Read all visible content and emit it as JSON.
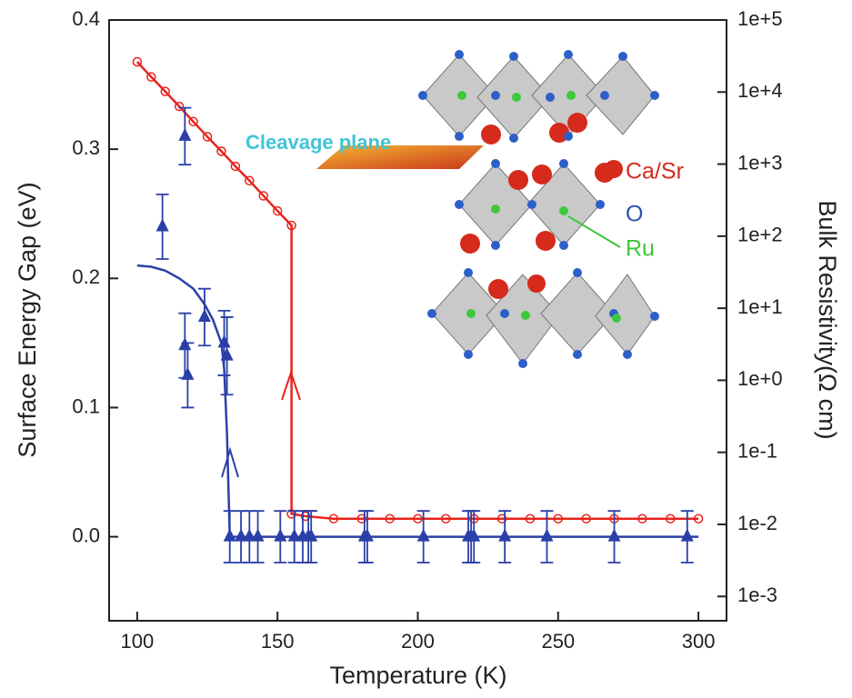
{
  "chart_data": {
    "type": "line",
    "xlabel": "Temperature (K)",
    "ylabel": "Surface Energy Gap (eV)",
    "y2label": "Bulk Resistivity(Ω cm)",
    "xlim": [
      90,
      310
    ],
    "ylim": [
      -0.065,
      0.4
    ],
    "y2lim": [
      0.00046,
      100000
    ],
    "y2scale": "log",
    "xticks": [
      100,
      150,
      200,
      250,
      300
    ],
    "yticks": [
      {
        "value": 0,
        "label": "0.0"
      },
      0.1,
      0.2,
      0.3,
      0.4
    ],
    "y2ticks": [
      {
        "value": 0.001,
        "label": "1e-3"
      },
      {
        "value": 0.01,
        "label": "1e-2"
      },
      {
        "value": 0.1,
        "label": "1e-1"
      },
      {
        "value": 1,
        "label": "1e+0"
      },
      {
        "value": 10,
        "label": "1e+1"
      },
      {
        "value": 100,
        "label": "1e+2"
      },
      {
        "value": 1000,
        "label": "1e+3"
      },
      {
        "value": 10000,
        "label": "1e+4"
      },
      {
        "value": 100000,
        "label": "1e+5"
      }
    ],
    "annotations": [
      "Cleavage plane",
      "Ca/Sr",
      "O",
      "Ru"
    ],
    "series": [
      {
        "color": "#e8231c",
        "axis": "y2",
        "marker": "circle",
        "line": true,
        "x": [
          100,
          105,
          110,
          115,
          120,
          125,
          130,
          135,
          140,
          145,
          150,
          155,
          155,
          160,
          170,
          180,
          190,
          200,
          210,
          220,
          230,
          240,
          250,
          260,
          270,
          280,
          290,
          300
        ],
        "values": [
          26300,
          16200,
          10200,
          6310,
          3890,
          2400,
          1510,
          933,
          589,
          363,
          224,
          141,
          0.014,
          0.013,
          0.012,
          0.012,
          0.012,
          0.012,
          0.012,
          0.012,
          0.012,
          0.012,
          0.012,
          0.012,
          0.012,
          0.012,
          0.012,
          0.012
        ]
      },
      {
        "color": "#2b3fa8",
        "marker": "none",
        "line": true,
        "x": [
          100,
          105,
          110,
          115,
          120,
          124,
          127,
          130,
          131,
          132,
          133,
          150,
          200,
          250,
          300
        ],
        "values": [
          0.21,
          0.209,
          0.206,
          0.2,
          0.192,
          0.18,
          0.168,
          0.15,
          0.13,
          0.08,
          0,
          0,
          0,
          0,
          0
        ]
      },
      {
        "color": "#2b3fa8",
        "marker": "triangle",
        "line": false,
        "x": [
          109,
          117,
          117,
          118,
          124,
          131,
          132,
          133,
          137,
          140,
          143,
          151,
          156,
          159,
          161,
          162,
          181,
          182,
          202,
          218,
          219,
          220,
          231,
          246,
          270,
          296
        ],
        "values": [
          0.24,
          0.31,
          0.148,
          0.125,
          0.17,
          0.15,
          0.14,
          0,
          0,
          0,
          0,
          0,
          0,
          0,
          0,
          0,
          0,
          0,
          0,
          0,
          0,
          0,
          0,
          0,
          0,
          0
        ],
        "errors": [
          0.025,
          0.022,
          0.025,
          0.025,
          0.022,
          0.025,
          0.03,
          0.02,
          0.02,
          0.02,
          0.02,
          0.02,
          0.02,
          0.02,
          0.02,
          0.02,
          0.02,
          0.02,
          0.02,
          0.02,
          0.02,
          0.02,
          0.02,
          0.02,
          0.02,
          0.02
        ]
      }
    ]
  }
}
